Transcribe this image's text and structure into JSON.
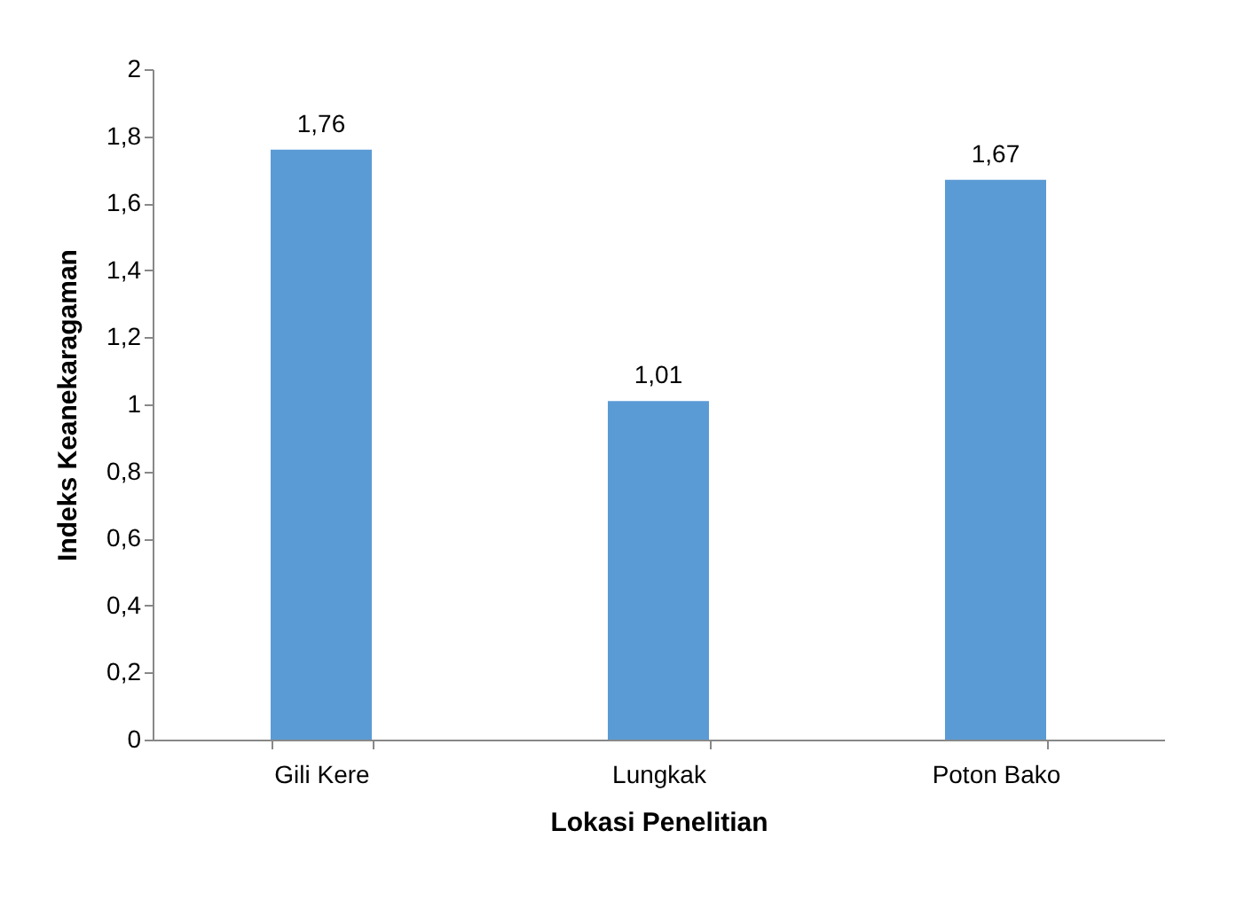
{
  "chart_data": {
    "type": "bar",
    "xlabel": "Lokasi Penelitian",
    "ylabel": "Indeks Keanekaragaman",
    "categories": [
      "Gili Kere",
      "Lungkak",
      "Poton Bako"
    ],
    "values": [
      1.76,
      1.01,
      1.67
    ],
    "value_labels": [
      "1,76",
      "1,01",
      "1,67"
    ],
    "color": "#5b9bd5",
    "ylim": [
      0,
      2
    ],
    "yticks": [
      0,
      {
        "value": 0.2,
        "label": "0,2"
      },
      {
        "value": 0.4,
        "label": "0,4"
      },
      {
        "value": 0.6,
        "label": "0,6"
      },
      {
        "value": 0.8,
        "label": "0,8"
      },
      1,
      {
        "value": 1.2,
        "label": "1,2"
      },
      {
        "value": 1.4,
        "label": "1,4"
      },
      {
        "value": 1.6,
        "label": "1,6"
      },
      {
        "value": 1.8,
        "label": "1,8"
      },
      2
    ],
    "grid": false
  }
}
